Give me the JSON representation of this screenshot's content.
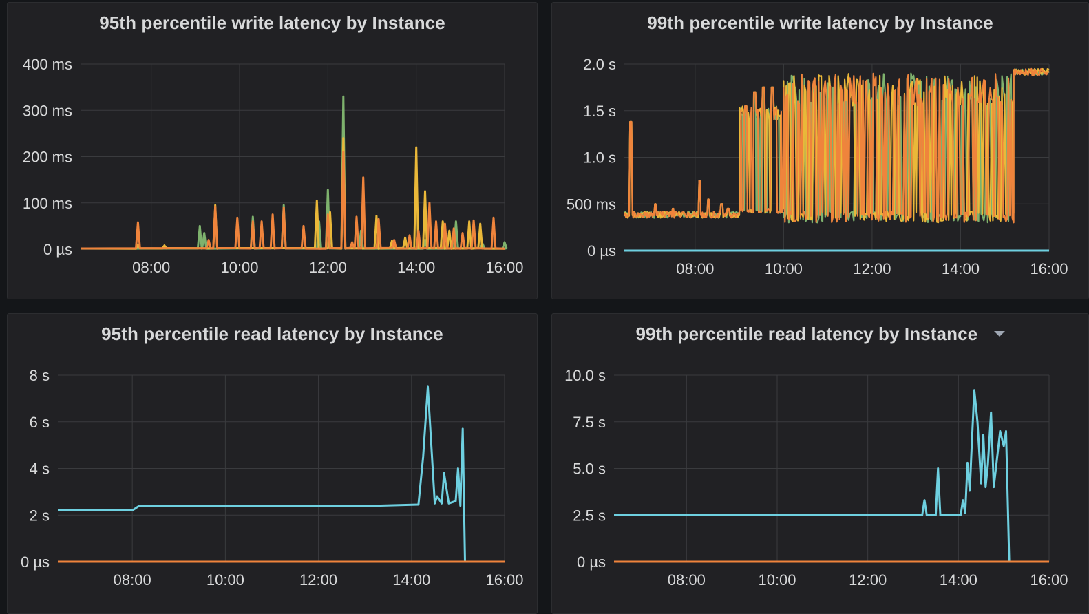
{
  "colors": {
    "panel_bg": "#212124",
    "grid": "#3a3b3e",
    "tick_text": "#d8d9da",
    "green": "#7eb26d",
    "yellow": "#eab839",
    "cyan": "#6ed0e0",
    "orange": "#ef843c"
  },
  "panels": [
    {
      "title": "95th percentile write latency by Instance"
    },
    {
      "title": "99th percentile write latency by Instance"
    },
    {
      "title": "95th percentile read latency by Instance",
      "has_menu": false
    },
    {
      "title": "99th percentile read latency by Instance",
      "has_menu": true
    }
  ],
  "chart_data": [
    {
      "type": "line",
      "title": "95th percentile write latency by Instance",
      "xlim": [
        6.4,
        16.0
      ],
      "x_ticks": [
        "08:00",
        "10:00",
        "12:00",
        "14:00",
        "16:00"
      ],
      "x_tick_values": [
        8,
        10,
        12,
        14,
        16
      ],
      "ylim": [
        0,
        400
      ],
      "y_ticks": [
        "400 ms",
        "300 ms",
        "200 ms",
        "100 ms",
        "0 µs"
      ],
      "y_tick_values": [
        400,
        300,
        200,
        100,
        0
      ],
      "y_unit": "ms",
      "series": [
        {
          "color": "green",
          "baseline": 1,
          "spikes": [
            [
              9.1,
              50
            ],
            [
              9.2,
              35
            ],
            [
              10.3,
              70
            ],
            [
              11.0,
              95
            ],
            [
              11.8,
              60
            ],
            [
              12.0,
              128
            ],
            [
              12.35,
              330
            ],
            [
              12.75,
              40
            ],
            [
              14.2,
              20
            ],
            [
              14.9,
              60
            ],
            [
              15.5,
              12
            ],
            [
              16.0,
              15
            ]
          ]
        },
        {
          "color": "yellow",
          "baseline": 1,
          "spikes": [
            [
              7.7,
              10
            ],
            [
              8.3,
              8
            ],
            [
              9.45,
              95
            ],
            [
              11.75,
              105
            ],
            [
              12.05,
              80
            ],
            [
              12.35,
              240
            ],
            [
              13.1,
              72
            ],
            [
              13.45,
              18
            ],
            [
              13.75,
              25
            ],
            [
              14.0,
              220
            ],
            [
              14.2,
              125
            ],
            [
              14.6,
              60
            ],
            [
              14.75,
              40
            ],
            [
              15.2,
              60
            ],
            [
              15.45,
              55
            ]
          ]
        },
        {
          "color": "cyan",
          "baseline": 1,
          "spikes": []
        },
        {
          "color": "orange",
          "baseline": 1,
          "spikes": [
            [
              7.7,
              58
            ],
            [
              9.3,
              20
            ],
            [
              9.45,
              92
            ],
            [
              9.95,
              68
            ],
            [
              10.3,
              60
            ],
            [
              10.5,
              60
            ],
            [
              10.75,
              75
            ],
            [
              11.0,
              90
            ],
            [
              11.45,
              50
            ],
            [
              12.0,
              75
            ],
            [
              12.35,
              210
            ],
            [
              12.55,
              15
            ],
            [
              12.65,
              70
            ],
            [
              12.8,
              155
            ],
            [
              13.15,
              65
            ],
            [
              13.5,
              20
            ],
            [
              13.85,
              30
            ],
            [
              14.05,
              40
            ],
            [
              14.3,
              100
            ],
            [
              14.45,
              60
            ],
            [
              14.65,
              55
            ],
            [
              14.85,
              45
            ],
            [
              15.05,
              35
            ],
            [
              15.3,
              62
            ],
            [
              15.75,
              68
            ]
          ]
        }
      ]
    },
    {
      "type": "line",
      "title": "99th percentile write latency by Instance",
      "xlim": [
        6.4,
        16.0
      ],
      "x_ticks": [
        "08:00",
        "10:00",
        "12:00",
        "14:00",
        "16:00"
      ],
      "x_tick_values": [
        8,
        10,
        12,
        14,
        16
      ],
      "ylim": [
        0,
        2.0
      ],
      "y_ticks": [
        "2.0 s",
        "1.5 s",
        "1.0 s",
        "500 ms",
        "0 µs"
      ],
      "y_tick_values": [
        2.0,
        1.5,
        1.0,
        0.5,
        0
      ],
      "y_unit": "s",
      "regimes": [
        {
          "x_start": 6.4,
          "x_end": 9.0,
          "low": 0.35,
          "high": 0.42,
          "spikes": [
            [
              6.55,
              1.38
            ],
            [
              7.1,
              0.5
            ],
            [
              7.5,
              0.45
            ],
            [
              8.1,
              0.75
            ],
            [
              8.3,
              0.55
            ],
            [
              8.6,
              0.5
            ],
            [
              8.75,
              0.45
            ]
          ]
        },
        {
          "x_start": 9.0,
          "x_end": 10.0,
          "low": 0.4,
          "high": 1.55,
          "spikes": [
            [
              9.15,
              1.55
            ],
            [
              9.35,
              1.7
            ],
            [
              9.55,
              1.75
            ],
            [
              9.75,
              1.75
            ]
          ]
        },
        {
          "x_start": 10.0,
          "x_end": 15.2,
          "low": 0.3,
          "high": 1.9,
          "spikes": []
        },
        {
          "x_start": 15.2,
          "x_end": 16.0,
          "low": 1.88,
          "high": 1.95,
          "spikes": []
        }
      ],
      "series": [
        {
          "color": "green",
          "role": "noisy"
        },
        {
          "color": "yellow",
          "role": "noisy"
        },
        {
          "color": "orange",
          "role": "noisy"
        },
        {
          "color": "cyan",
          "role": "flat",
          "value": 0
        }
      ]
    },
    {
      "type": "line",
      "title": "95th percentile read latency by Instance",
      "xlim": [
        6.4,
        16.0
      ],
      "x_ticks": [
        "08:00",
        "10:00",
        "12:00",
        "14:00",
        "16:00"
      ],
      "x_tick_values": [
        8,
        10,
        12,
        14,
        16
      ],
      "ylim": [
        0,
        8
      ],
      "y_ticks": [
        "8 s",
        "6 s",
        "4 s",
        "2 s",
        "0 µs"
      ],
      "y_tick_values": [
        8,
        6,
        4,
        2,
        0
      ],
      "y_unit": "s",
      "series": [
        {
          "color": "cyan",
          "points": [
            [
              6.4,
              2.2
            ],
            [
              8.0,
              2.2
            ],
            [
              8.15,
              2.4
            ],
            [
              13.2,
              2.4
            ],
            [
              14.15,
              2.45
            ],
            [
              14.25,
              4.5
            ],
            [
              14.35,
              7.5
            ],
            [
              14.5,
              2.5
            ],
            [
              14.55,
              2.8
            ],
            [
              14.65,
              2.5
            ],
            [
              14.7,
              3.8
            ],
            [
              14.8,
              2.5
            ],
            [
              14.95,
              2.6
            ],
            [
              15.0,
              4.0
            ],
            [
              15.05,
              2.4
            ],
            [
              15.1,
              5.7
            ],
            [
              15.15,
              0
            ],
            [
              16.0,
              0
            ]
          ]
        },
        {
          "color": "orange",
          "points": [
            [
              6.4,
              0
            ],
            [
              16.0,
              0
            ]
          ]
        }
      ]
    },
    {
      "type": "line",
      "title": "99th percentile read latency by Instance",
      "xlim": [
        6.4,
        16.0
      ],
      "x_ticks": [
        "08:00",
        "10:00",
        "12:00",
        "14:00",
        "16:00"
      ],
      "x_tick_values": [
        8,
        10,
        12,
        14,
        16
      ],
      "ylim": [
        0,
        10
      ],
      "y_ticks": [
        "10.0 s",
        "7.5 s",
        "5.0 s",
        "2.5 s",
        "0 µs"
      ],
      "y_tick_values": [
        10,
        7.5,
        5,
        2.5,
        0
      ],
      "y_unit": "s",
      "series": [
        {
          "color": "cyan",
          "points": [
            [
              6.4,
              2.5
            ],
            [
              13.2,
              2.5
            ],
            [
              13.25,
              3.3
            ],
            [
              13.3,
              2.5
            ],
            [
              13.5,
              2.5
            ],
            [
              13.55,
              5.0
            ],
            [
              13.6,
              2.5
            ],
            [
              14.05,
              2.5
            ],
            [
              14.1,
              3.3
            ],
            [
              14.15,
              2.6
            ],
            [
              14.2,
              5.3
            ],
            [
              14.25,
              3.8
            ],
            [
              14.3,
              6.6
            ],
            [
              14.35,
              9.2
            ],
            [
              14.42,
              7.5
            ],
            [
              14.5,
              4.2
            ],
            [
              14.55,
              6.8
            ],
            [
              14.6,
              4.0
            ],
            [
              14.65,
              5.2
            ],
            [
              14.72,
              8.0
            ],
            [
              14.78,
              4.0
            ],
            [
              14.85,
              5.5
            ],
            [
              14.92,
              7.0
            ],
            [
              15.0,
              6.2
            ],
            [
              15.05,
              7.0
            ],
            [
              15.12,
              0
            ],
            [
              16.0,
              0
            ]
          ]
        },
        {
          "color": "orange",
          "points": [
            [
              6.4,
              0
            ],
            [
              16.0,
              0
            ]
          ]
        }
      ]
    }
  ]
}
